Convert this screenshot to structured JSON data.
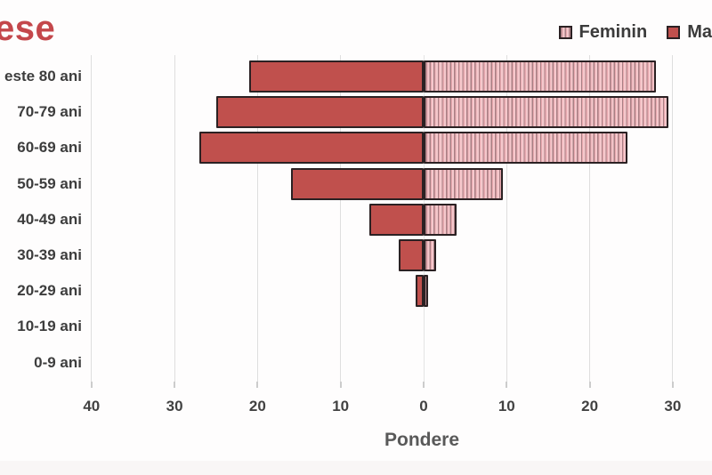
{
  "title": {
    "text": "ese",
    "color": "#c4474b"
  },
  "legend": {
    "items": [
      {
        "label": "Feminin",
        "swatch": "striped-pink"
      },
      {
        "label": "Ma",
        "swatch": "solid-red"
      }
    ]
  },
  "x_axis": {
    "label": "Pondere"
  },
  "chart_data": {
    "type": "bar",
    "subtype": "population-pyramid",
    "title": "ese",
    "xlabel": "Pondere",
    "ylabel": "",
    "categories": [
      "este 80 ani",
      "70-79 ani",
      "60-69 ani",
      "50-59 ani",
      "40-49 ani",
      "30-39 ani",
      "20-29 ani",
      "10-19 ani",
      "0-9 ani"
    ],
    "series": [
      {
        "name": "Ma",
        "side": "left",
        "values": [
          21,
          25,
          27,
          16,
          6.5,
          3,
          1,
          0,
          0
        ]
      },
      {
        "name": "Feminin",
        "side": "right",
        "values": [
          28,
          29.5,
          24.5,
          9.5,
          4,
          1.5,
          0.5,
          0,
          0
        ]
      }
    ],
    "x_ticks": [
      -40,
      -30,
      -20,
      -10,
      0,
      10,
      20,
      30
    ],
    "x_tick_labels": [
      "40",
      "30",
      "20",
      "10",
      "0",
      "10",
      "20",
      "30"
    ],
    "xlim": [
      -40,
      34.7
    ],
    "grid": true,
    "legend_position": "top-right",
    "colors": {
      "masculin_fill": "#c0504d",
      "feminin_stripe_light": "#f5c8cc",
      "feminin_stripe_mid": "#e9aab0",
      "feminin_stripe_dark": "#a87f84",
      "bar_border": "#2b2123",
      "gridline": "#dedede",
      "axis_text": "#424242",
      "title_red": "#c4474b"
    }
  }
}
